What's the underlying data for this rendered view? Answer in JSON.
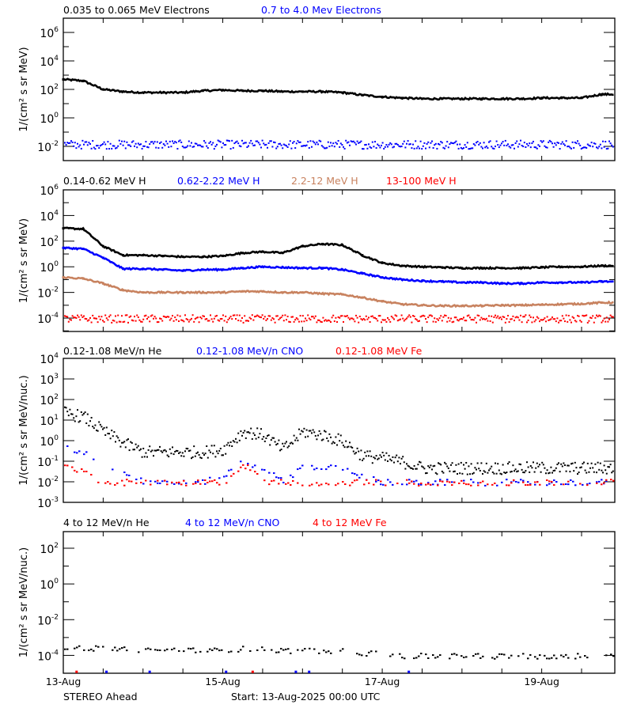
{
  "chart_data": [
    {
      "type": "scatter",
      "yscale": "log",
      "ylabel": "1/(cm² s sr MeV)",
      "ylim": [
        0.001,
        10000000
      ],
      "y_ticks": [
        {
          "base": "10",
          "exp": "6"
        },
        {
          "base": "10",
          "exp": "4"
        },
        {
          "base": "10",
          "exp": "2"
        },
        {
          "base": "10",
          "exp": "0"
        },
        {
          "base": "10",
          "exp": "-2"
        }
      ],
      "x": [
        "2025-08-13 00:00",
        "2025-08-13 06:00",
        "2025-08-13 12:00",
        "2025-08-13 18:00",
        "2025-08-14 00:00",
        "2025-08-14 06:00",
        "2025-08-14 12:00",
        "2025-08-14 18:00",
        "2025-08-15 00:00",
        "2025-08-15 06:00",
        "2025-08-15 12:00",
        "2025-08-15 18:00",
        "2025-08-16 00:00",
        "2025-08-16 06:00",
        "2025-08-16 12:00",
        "2025-08-16 18:00",
        "2025-08-17 00:00",
        "2025-08-17 06:00",
        "2025-08-17 12:00",
        "2025-08-17 18:00",
        "2025-08-18 00:00",
        "2025-08-18 06:00",
        "2025-08-18 12:00",
        "2025-08-18 18:00",
        "2025-08-19 00:00",
        "2025-08-19 06:00",
        "2025-08-19 12:00",
        "2025-08-19 18:00"
      ],
      "series": [
        {
          "name": "0.035 to 0.065 MeV Electrons",
          "color": "#000000",
          "style": "line",
          "values": [
            500,
            400,
            100,
            70,
            60,
            60,
            60,
            80,
            90,
            80,
            80,
            70,
            70,
            70,
            60,
            40,
            30,
            25,
            22,
            22,
            22,
            22,
            22,
            22,
            25,
            25,
            25,
            45
          ]
        },
        {
          "name": "0.7 to 4.0 Mev Electrons",
          "color": "#0000ff",
          "style": "scatter",
          "values": [
            0.015,
            0.015,
            0.015,
            0.015,
            0.015,
            0.015,
            0.015,
            0.015,
            0.015,
            0.015,
            0.015,
            0.015,
            0.015,
            0.015,
            0.015,
            0.015,
            0.015,
            0.015,
            0.015,
            0.015,
            0.015,
            0.015,
            0.015,
            0.015,
            0.015,
            0.015,
            0.015,
            0.015
          ]
        }
      ]
    },
    {
      "type": "scatter",
      "yscale": "log",
      "ylabel": "1/(cm² s sr MeV)",
      "ylim": [
        9e-06,
        1000000
      ],
      "y_ticks": [
        {
          "base": "10",
          "exp": "6"
        },
        {
          "base": "10",
          "exp": "4"
        },
        {
          "base": "10",
          "exp": "2"
        },
        {
          "base": "10",
          "exp": "0"
        },
        {
          "base": "10",
          "exp": "-2"
        },
        {
          "base": "10",
          "exp": "-4"
        }
      ],
      "x": [
        "2025-08-13 00:00",
        "2025-08-13 06:00",
        "2025-08-13 12:00",
        "2025-08-13 18:00",
        "2025-08-14 00:00",
        "2025-08-14 06:00",
        "2025-08-14 12:00",
        "2025-08-14 18:00",
        "2025-08-15 00:00",
        "2025-08-15 06:00",
        "2025-08-15 12:00",
        "2025-08-15 18:00",
        "2025-08-16 00:00",
        "2025-08-16 06:00",
        "2025-08-16 12:00",
        "2025-08-16 18:00",
        "2025-08-17 00:00",
        "2025-08-17 06:00",
        "2025-08-17 12:00",
        "2025-08-17 18:00",
        "2025-08-18 00:00",
        "2025-08-18 06:00",
        "2025-08-18 12:00",
        "2025-08-18 18:00",
        "2025-08-19 00:00",
        "2025-08-19 06:00",
        "2025-08-19 12:00",
        "2025-08-19 18:00"
      ],
      "series": [
        {
          "name": "0.14-0.62 MeV H",
          "color": "#000000",
          "style": "line",
          "values": [
            1000,
            900,
            40,
            8,
            8,
            7,
            6,
            6,
            7,
            12,
            15,
            12,
            40,
            60,
            50,
            8,
            2,
            1.2,
            1,
            0.9,
            0.8,
            0.8,
            0.8,
            0.8,
            0.9,
            1,
            1,
            1.2
          ]
        },
        {
          "name": "0.62-2.22 MeV H",
          "color": "#0000ff",
          "style": "line",
          "values": [
            30,
            25,
            5,
            0.7,
            0.7,
            0.6,
            0.5,
            0.6,
            0.6,
            0.8,
            1,
            0.9,
            0.8,
            0.8,
            0.6,
            0.3,
            0.15,
            0.1,
            0.08,
            0.07,
            0.06,
            0.06,
            0.05,
            0.05,
            0.06,
            0.06,
            0.06,
            0.07
          ]
        },
        {
          "name": "2.2-12 MeV H",
          "color": "#c8825f",
          "style": "line",
          "values": [
            0.15,
            0.12,
            0.05,
            0.015,
            0.01,
            0.01,
            0.01,
            0.01,
            0.01,
            0.012,
            0.012,
            0.01,
            0.01,
            0.008,
            0.007,
            0.004,
            0.002,
            0.0012,
            0.001,
            0.0009,
            0.0009,
            0.0009,
            0.001,
            0.001,
            0.0011,
            0.0012,
            0.0013,
            0.0016
          ]
        },
        {
          "name": "13-100 MeV H",
          "color": "#ff0000",
          "style": "scatter",
          "values": [
            0.0001,
            0.0001,
            0.0001,
            0.0001,
            0.0001,
            0.0001,
            0.0001,
            0.0001,
            0.0001,
            0.0001,
            0.0001,
            0.0001,
            0.0001,
            0.0001,
            0.0001,
            0.0001,
            0.0001,
            0.0001,
            0.0001,
            0.0001,
            0.0001,
            0.0001,
            0.0001,
            0.0001,
            0.0001,
            0.0001,
            0.0001,
            0.0001
          ]
        }
      ]
    },
    {
      "type": "scatter",
      "yscale": "log",
      "ylabel": "1/(cm² s sr MeV/nuc.)",
      "ylim": [
        0.001,
        10000
      ],
      "y_ticks": [
        {
          "base": "10",
          "exp": "4"
        },
        {
          "base": "10",
          "exp": "3"
        },
        {
          "base": "10",
          "exp": "2"
        },
        {
          "base": "10",
          "exp": "1"
        },
        {
          "base": "10",
          "exp": "0"
        },
        {
          "base": "10",
          "exp": "-1"
        },
        {
          "base": "10",
          "exp": "-2"
        },
        {
          "base": "10",
          "exp": "-3"
        }
      ],
      "x": [
        "2025-08-13 00:00",
        "2025-08-13 06:00",
        "2025-08-13 12:00",
        "2025-08-13 18:00",
        "2025-08-14 00:00",
        "2025-08-14 06:00",
        "2025-08-14 12:00",
        "2025-08-14 18:00",
        "2025-08-15 00:00",
        "2025-08-15 06:00",
        "2025-08-15 12:00",
        "2025-08-15 18:00",
        "2025-08-16 00:00",
        "2025-08-16 06:00",
        "2025-08-16 12:00",
        "2025-08-16 18:00",
        "2025-08-17 00:00",
        "2025-08-17 06:00",
        "2025-08-17 12:00",
        "2025-08-17 18:00",
        "2025-08-18 00:00",
        "2025-08-18 06:00",
        "2025-08-18 12:00",
        "2025-08-18 18:00",
        "2025-08-19 00:00",
        "2025-08-19 06:00",
        "2025-08-19 12:00",
        "2025-08-19 18:00"
      ],
      "series": [
        {
          "name": "0.12-1.08 MeV/n He",
          "color": "#000000",
          "style": "scatter",
          "values": [
            25,
            15,
            3,
            0.8,
            0.3,
            0.3,
            0.3,
            0.3,
            0.4,
            3,
            2,
            0.4,
            3,
            2,
            1,
            0.2,
            0.15,
            0.1,
            0.05,
            0.05,
            0.05,
            0.05,
            0.05,
            0.05,
            0.05,
            0.05,
            0.05,
            0.05
          ]
        },
        {
          "name": "0.12-1.08 MeV/n CNO",
          "color": "#0000ff",
          "style": "sparse",
          "values": [
            0.5,
            0.3,
            0.05,
            0.03,
            0.01,
            0.01,
            0.01,
            0.01,
            0.02,
            0.1,
            0.05,
            0.01,
            0.07,
            0.05,
            0.05,
            0.02,
            0.01,
            0.01,
            0.01,
            0.01,
            0.01,
            0.01,
            0.01,
            0.01,
            0.01,
            0.01,
            0.01,
            0.01
          ]
        },
        {
          "name": "0.12-1.08 MeV Fe",
          "color": "#ff0000",
          "style": "sparse",
          "values": [
            0.08,
            0.03,
            0.01,
            0.01,
            0.01,
            0.01,
            0.01,
            0.01,
            0.01,
            0.08,
            0.01,
            0.01,
            0.01,
            0.01,
            0.01,
            0.01,
            0.01,
            0.01,
            0.01,
            0.01,
            0.01,
            0.01,
            0.01,
            0.01,
            0.01,
            0.01,
            0.01,
            0.01
          ]
        }
      ]
    },
    {
      "type": "scatter",
      "yscale": "log",
      "ylabel": "1/(cm² s sr MeV/nuc.)",
      "ylim": [
        1e-05,
        850
      ],
      "y_ticks": [
        {
          "base": "10",
          "exp": "2"
        },
        {
          "base": "10",
          "exp": "0"
        },
        {
          "base": "10",
          "exp": "-2"
        },
        {
          "base": "10",
          "exp": "-4"
        }
      ],
      "x": [
        "2025-08-13 00:00",
        "2025-08-13 06:00",
        "2025-08-13 12:00",
        "2025-08-13 18:00",
        "2025-08-14 00:00",
        "2025-08-14 06:00",
        "2025-08-14 12:00",
        "2025-08-14 18:00",
        "2025-08-15 00:00",
        "2025-08-15 06:00",
        "2025-08-15 12:00",
        "2025-08-15 18:00",
        "2025-08-16 00:00",
        "2025-08-16 06:00",
        "2025-08-16 12:00",
        "2025-08-16 18:00",
        "2025-08-17 00:00",
        "2025-08-17 06:00",
        "2025-08-17 12:00",
        "2025-08-17 18:00",
        "2025-08-18 00:00",
        "2025-08-18 06:00",
        "2025-08-18 12:00",
        "2025-08-18 18:00",
        "2025-08-19 00:00",
        "2025-08-19 06:00",
        "2025-08-19 12:00",
        "2025-08-19 18:00"
      ],
      "series": [
        {
          "name": "4 to 12 MeV/n He",
          "color": "#000000",
          "style": "sparse",
          "values": [
            0.0003,
            0.0003,
            0.00025,
            0.00025,
            0.0002,
            0.0002,
            0.00025,
            0.0002,
            0.0002,
            0.00025,
            0.00025,
            0.0002,
            0.0002,
            0.0002,
            0.0002,
            0.00015,
            0.00012,
            0.0001,
            0.0001,
            0.0001,
            0.0001,
            0.0001,
            0.0001,
            0.0001,
            0.0001,
            0.0001,
            0.0001,
            0.0001
          ]
        },
        {
          "name": "4 to 12 MeV/n CNO",
          "color": "#0000ff",
          "style": "points",
          "points": [
            [
              "2025-08-13 13:00",
              1.2e-05
            ],
            [
              "2025-08-14 02:00",
              1.2e-05
            ],
            [
              "2025-08-15 01:00",
              1.2e-05
            ],
            [
              "2025-08-15 22:00",
              1.2e-05
            ],
            [
              "2025-08-16 02:00",
              1.2e-05
            ],
            [
              "2025-08-17 08:00",
              1.2e-05
            ]
          ]
        },
        {
          "name": "4 to 12 MeV Fe",
          "color": "#ff0000",
          "style": "points",
          "points": [
            [
              "2025-08-13 04:00",
              1.2e-05
            ],
            [
              "2025-08-15 09:00",
              1.2e-05
            ]
          ]
        }
      ]
    }
  ],
  "x_axis": {
    "xlim": [
      "2025-08-13 00:00",
      "2025-08-19 22:00"
    ],
    "tick_labels": [
      {
        "label": "13-Aug",
        "time": "2025-08-13 00:00"
      },
      {
        "label": "15-Aug",
        "time": "2025-08-15 00:00"
      },
      {
        "label": "17-Aug",
        "time": "2025-08-17 00:00"
      },
      {
        "label": "19-Aug",
        "time": "2025-08-19 00:00"
      }
    ]
  },
  "footer": {
    "spacecraft": "STEREO Ahead",
    "start": "Start: 13-Aug-2025 00:00 UTC"
  }
}
